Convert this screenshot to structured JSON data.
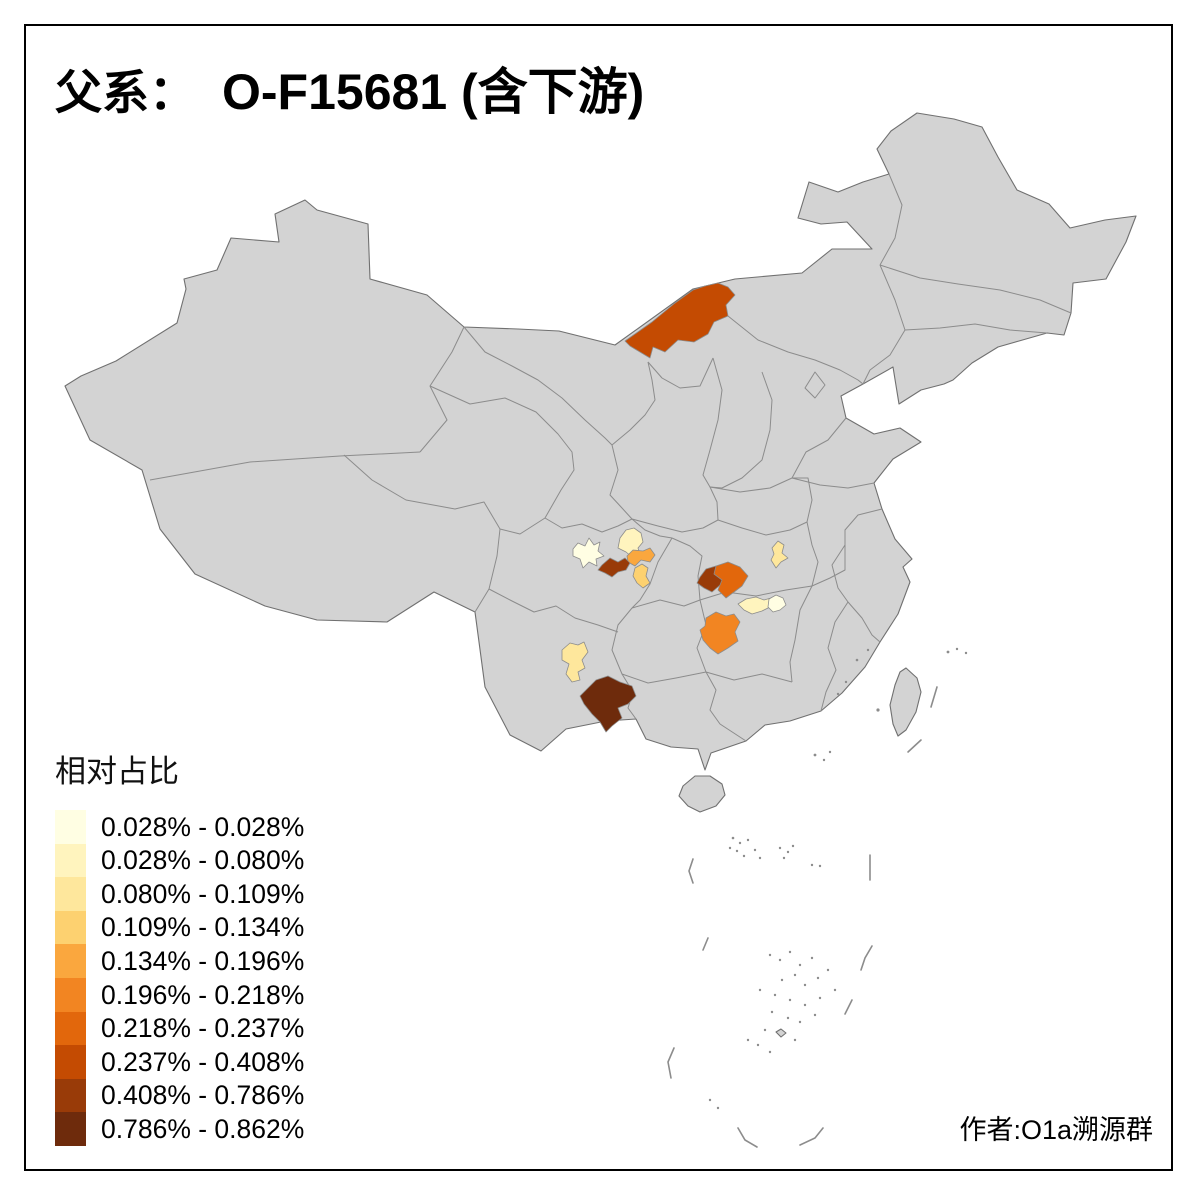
{
  "title": {
    "prefix": "父系：",
    "main": "O-F15681 (含下游)"
  },
  "legend": {
    "title": "相对占比",
    "classes": [
      {
        "label": "0.028% - 0.028%",
        "color": "#FFFEE3"
      },
      {
        "label": "0.028% - 0.080%",
        "color": "#FFF4BE"
      },
      {
        "label": "0.080% - 0.109%",
        "color": "#FEE79C"
      },
      {
        "label": "0.109% - 0.134%",
        "color": "#FDD170"
      },
      {
        "label": "0.134% - 0.196%",
        "color": "#FAA73E"
      },
      {
        "label": "0.196% - 0.218%",
        "color": "#F28522"
      },
      {
        "label": "0.218% - 0.237%",
        "color": "#E2670C"
      },
      {
        "label": "0.237% - 0.408%",
        "color": "#C44B02"
      },
      {
        "label": "0.408% - 0.786%",
        "color": "#993B08"
      },
      {
        "label": "0.786% - 0.862%",
        "color": "#6E2B0C"
      }
    ]
  },
  "attribution": "作者:O1a溯源群",
  "map": {
    "base_fill": "#D3D3D3",
    "outline_color": "#707070",
    "boundary_color": "#8C8C8C",
    "frame_color": "#000000",
    "highlighted_regions": [
      {
        "name": "inner-mongolia-region",
        "class_index": 7,
        "range": "0.237% - 0.408%"
      },
      {
        "name": "sichuan-west-region",
        "class_index": 0,
        "range": "0.028% - 0.028%"
      },
      {
        "name": "sichuan-north-region",
        "class_index": 1,
        "range": "0.028% - 0.080%"
      },
      {
        "name": "sichuan-mid-orange-region",
        "class_index": 4,
        "range": "0.134% - 0.196%"
      },
      {
        "name": "sichuan-south-dark-region",
        "class_index": 8,
        "range": "0.408% - 0.786%"
      },
      {
        "name": "sichuan-southeast-region",
        "class_index": 3,
        "range": "0.109% - 0.134%"
      },
      {
        "name": "hubei-northwest-dark-region",
        "class_index": 8,
        "range": "0.408% - 0.786%"
      },
      {
        "name": "hubei-center-orange-region",
        "class_index": 6,
        "range": "0.218% - 0.237%"
      },
      {
        "name": "hubei-northeast-region",
        "class_index": 2,
        "range": "0.080% - 0.109%"
      },
      {
        "name": "hubei-south-strip-left-region",
        "class_index": 1,
        "range": "0.028% - 0.080%"
      },
      {
        "name": "hubei-south-strip-right-region",
        "class_index": 0,
        "range": "0.028% - 0.028%"
      },
      {
        "name": "guizhou-north-region",
        "class_index": 5,
        "range": "0.196% - 0.218%"
      },
      {
        "name": "yunnan-center-region",
        "class_index": 2,
        "range": "0.080% - 0.109%"
      },
      {
        "name": "yunnan-south-region",
        "class_index": 9,
        "range": "0.786% - 0.862%"
      }
    ]
  }
}
